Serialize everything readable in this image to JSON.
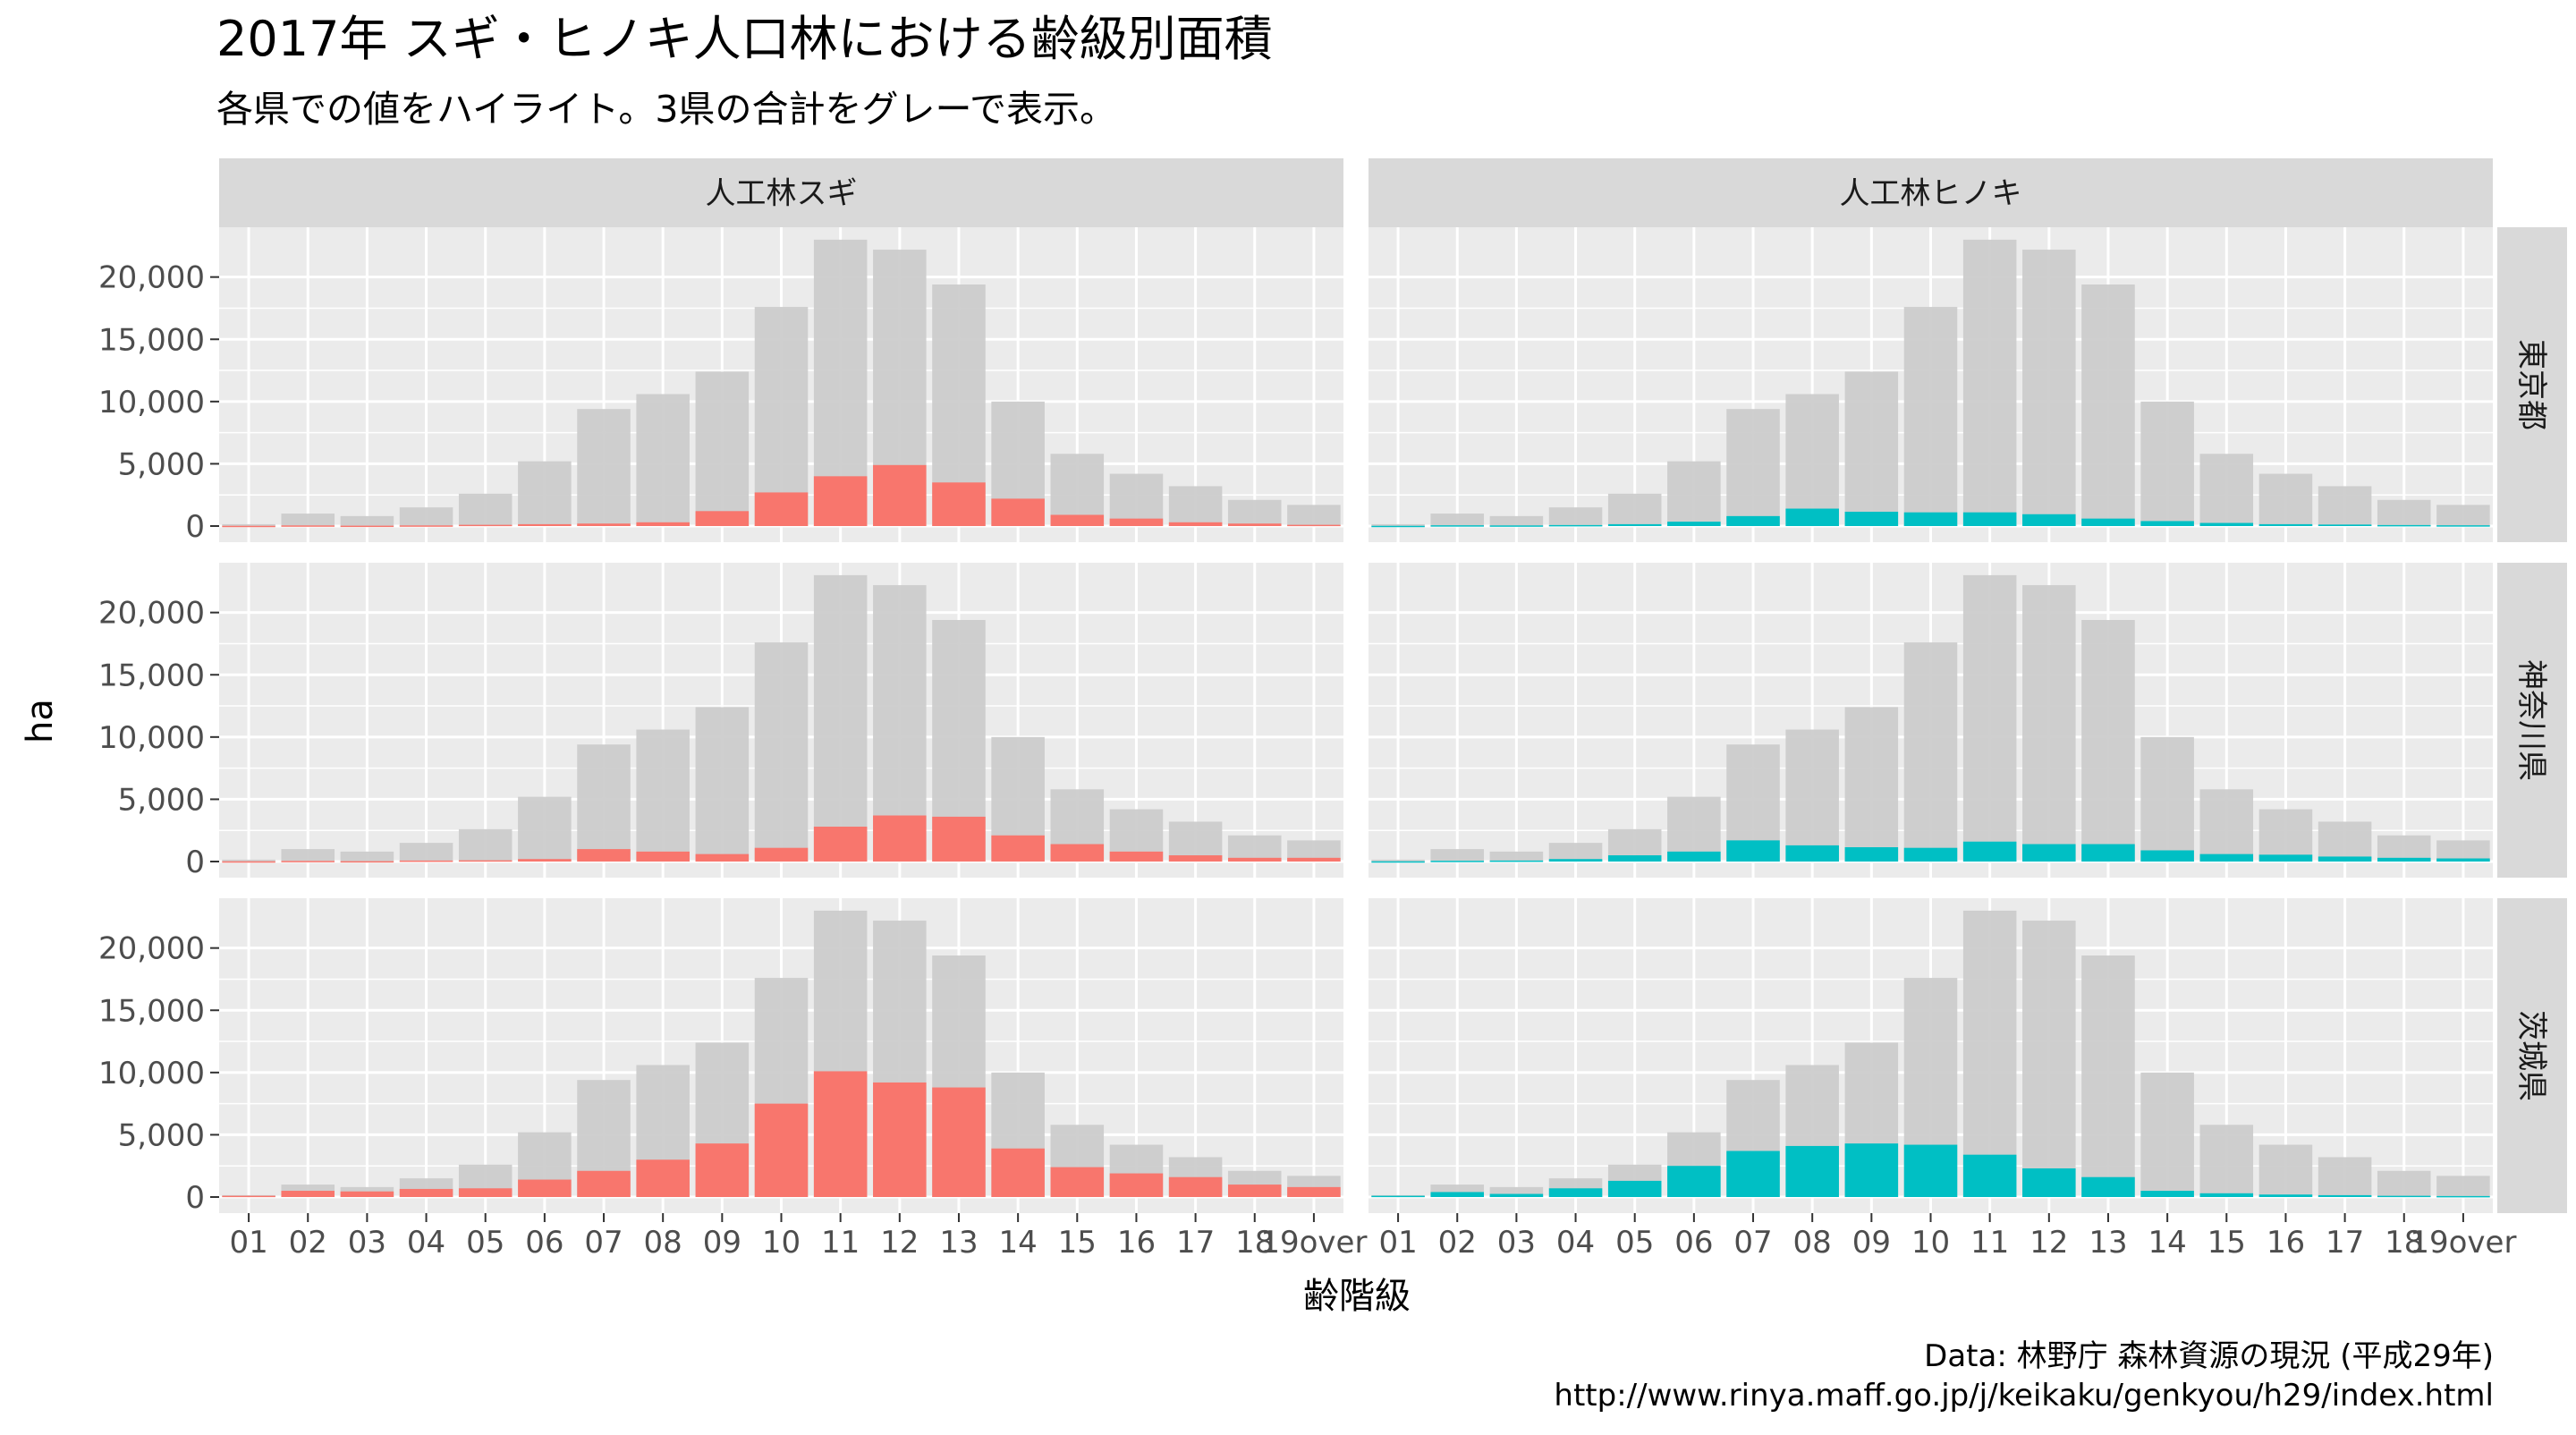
{
  "title": "2017年 スギ・ヒノキ人口林における齢級別面積",
  "subtitle": "各県での値をハイライト。3県の合計をグレーで表示。",
  "caption_line1": "Data: 林野庁 森林資源の現況 (平成29年)",
  "caption_line2": "http://www.rinya.maff.go.jp/j/keikaku/genkyou/h29/index.html",
  "colors": {
    "panel_bg": "#ebebeb",
    "grid": "#ffffff",
    "strip_bg": "#d9d9d9",
    "total_bar": "#cccccc",
    "sugi": "#f8766d",
    "hinoki": "#00bfc4"
  },
  "chart_data": {
    "type": "bar",
    "xlabel": "齢階級",
    "ylabel": "ha",
    "ylim": [
      0,
      24000
    ],
    "yticks": [
      0,
      5000,
      10000,
      15000,
      20000
    ],
    "ytick_labels": [
      "0",
      "5,000",
      "10,000",
      "15,000",
      "20,000"
    ],
    "categories": [
      "01",
      "02",
      "03",
      "04",
      "05",
      "06",
      "07",
      "08",
      "09",
      "10",
      "11",
      "12",
      "13",
      "14",
      "15",
      "16",
      "17",
      "18",
      "19over"
    ],
    "col_facets": [
      "人工林スギ",
      "人工林ヒノキ"
    ],
    "row_facets": [
      "東京都",
      "神奈川県",
      "茨城県"
    ],
    "total": [
      150,
      1000,
      800,
      1500,
      2600,
      5200,
      9400,
      10600,
      12400,
      17600,
      23000,
      22200,
      19400,
      10000,
      5800,
      4200,
      3200,
      2100,
      1700
    ],
    "panels": [
      {
        "facet_col": "人工林スギ",
        "facet_row": "東京都",
        "values": [
          20,
          50,
          30,
          50,
          100,
          150,
          200,
          300,
          1200,
          2700,
          4000,
          4900,
          3500,
          2200,
          900,
          600,
          300,
          200,
          100
        ]
      },
      {
        "facet_col": "人工林ヒノキ",
        "facet_row": "東京都",
        "values": [
          20,
          60,
          50,
          80,
          150,
          350,
          800,
          1400,
          1150,
          1100,
          1100,
          950,
          600,
          400,
          250,
          150,
          120,
          80,
          60
        ]
      },
      {
        "facet_col": "人工林スギ",
        "facet_row": "神奈川県",
        "values": [
          20,
          50,
          30,
          80,
          100,
          200,
          1000,
          800,
          600,
          1100,
          2800,
          3700,
          3600,
          2100,
          1400,
          800,
          500,
          300,
          300
        ]
      },
      {
        "facet_col": "人工林ヒノキ",
        "facet_row": "神奈川県",
        "values": [
          20,
          60,
          80,
          200,
          500,
          800,
          1700,
          1300,
          1150,
          1100,
          1600,
          1400,
          1400,
          900,
          600,
          550,
          400,
          300,
          250
        ]
      },
      {
        "facet_col": "人工林スギ",
        "facet_row": "茨城県",
        "values": [
          100,
          500,
          450,
          650,
          700,
          1400,
          2100,
          3000,
          4300,
          7500,
          10100,
          9200,
          8800,
          3900,
          2400,
          1900,
          1600,
          1000,
          800
        ]
      },
      {
        "facet_col": "人工林ヒノキ",
        "facet_row": "茨城県",
        "values": [
          100,
          400,
          250,
          700,
          1300,
          2500,
          3700,
          4100,
          4300,
          4200,
          3400,
          2300,
          1600,
          500,
          300,
          200,
          150,
          100,
          80
        ]
      }
    ]
  }
}
